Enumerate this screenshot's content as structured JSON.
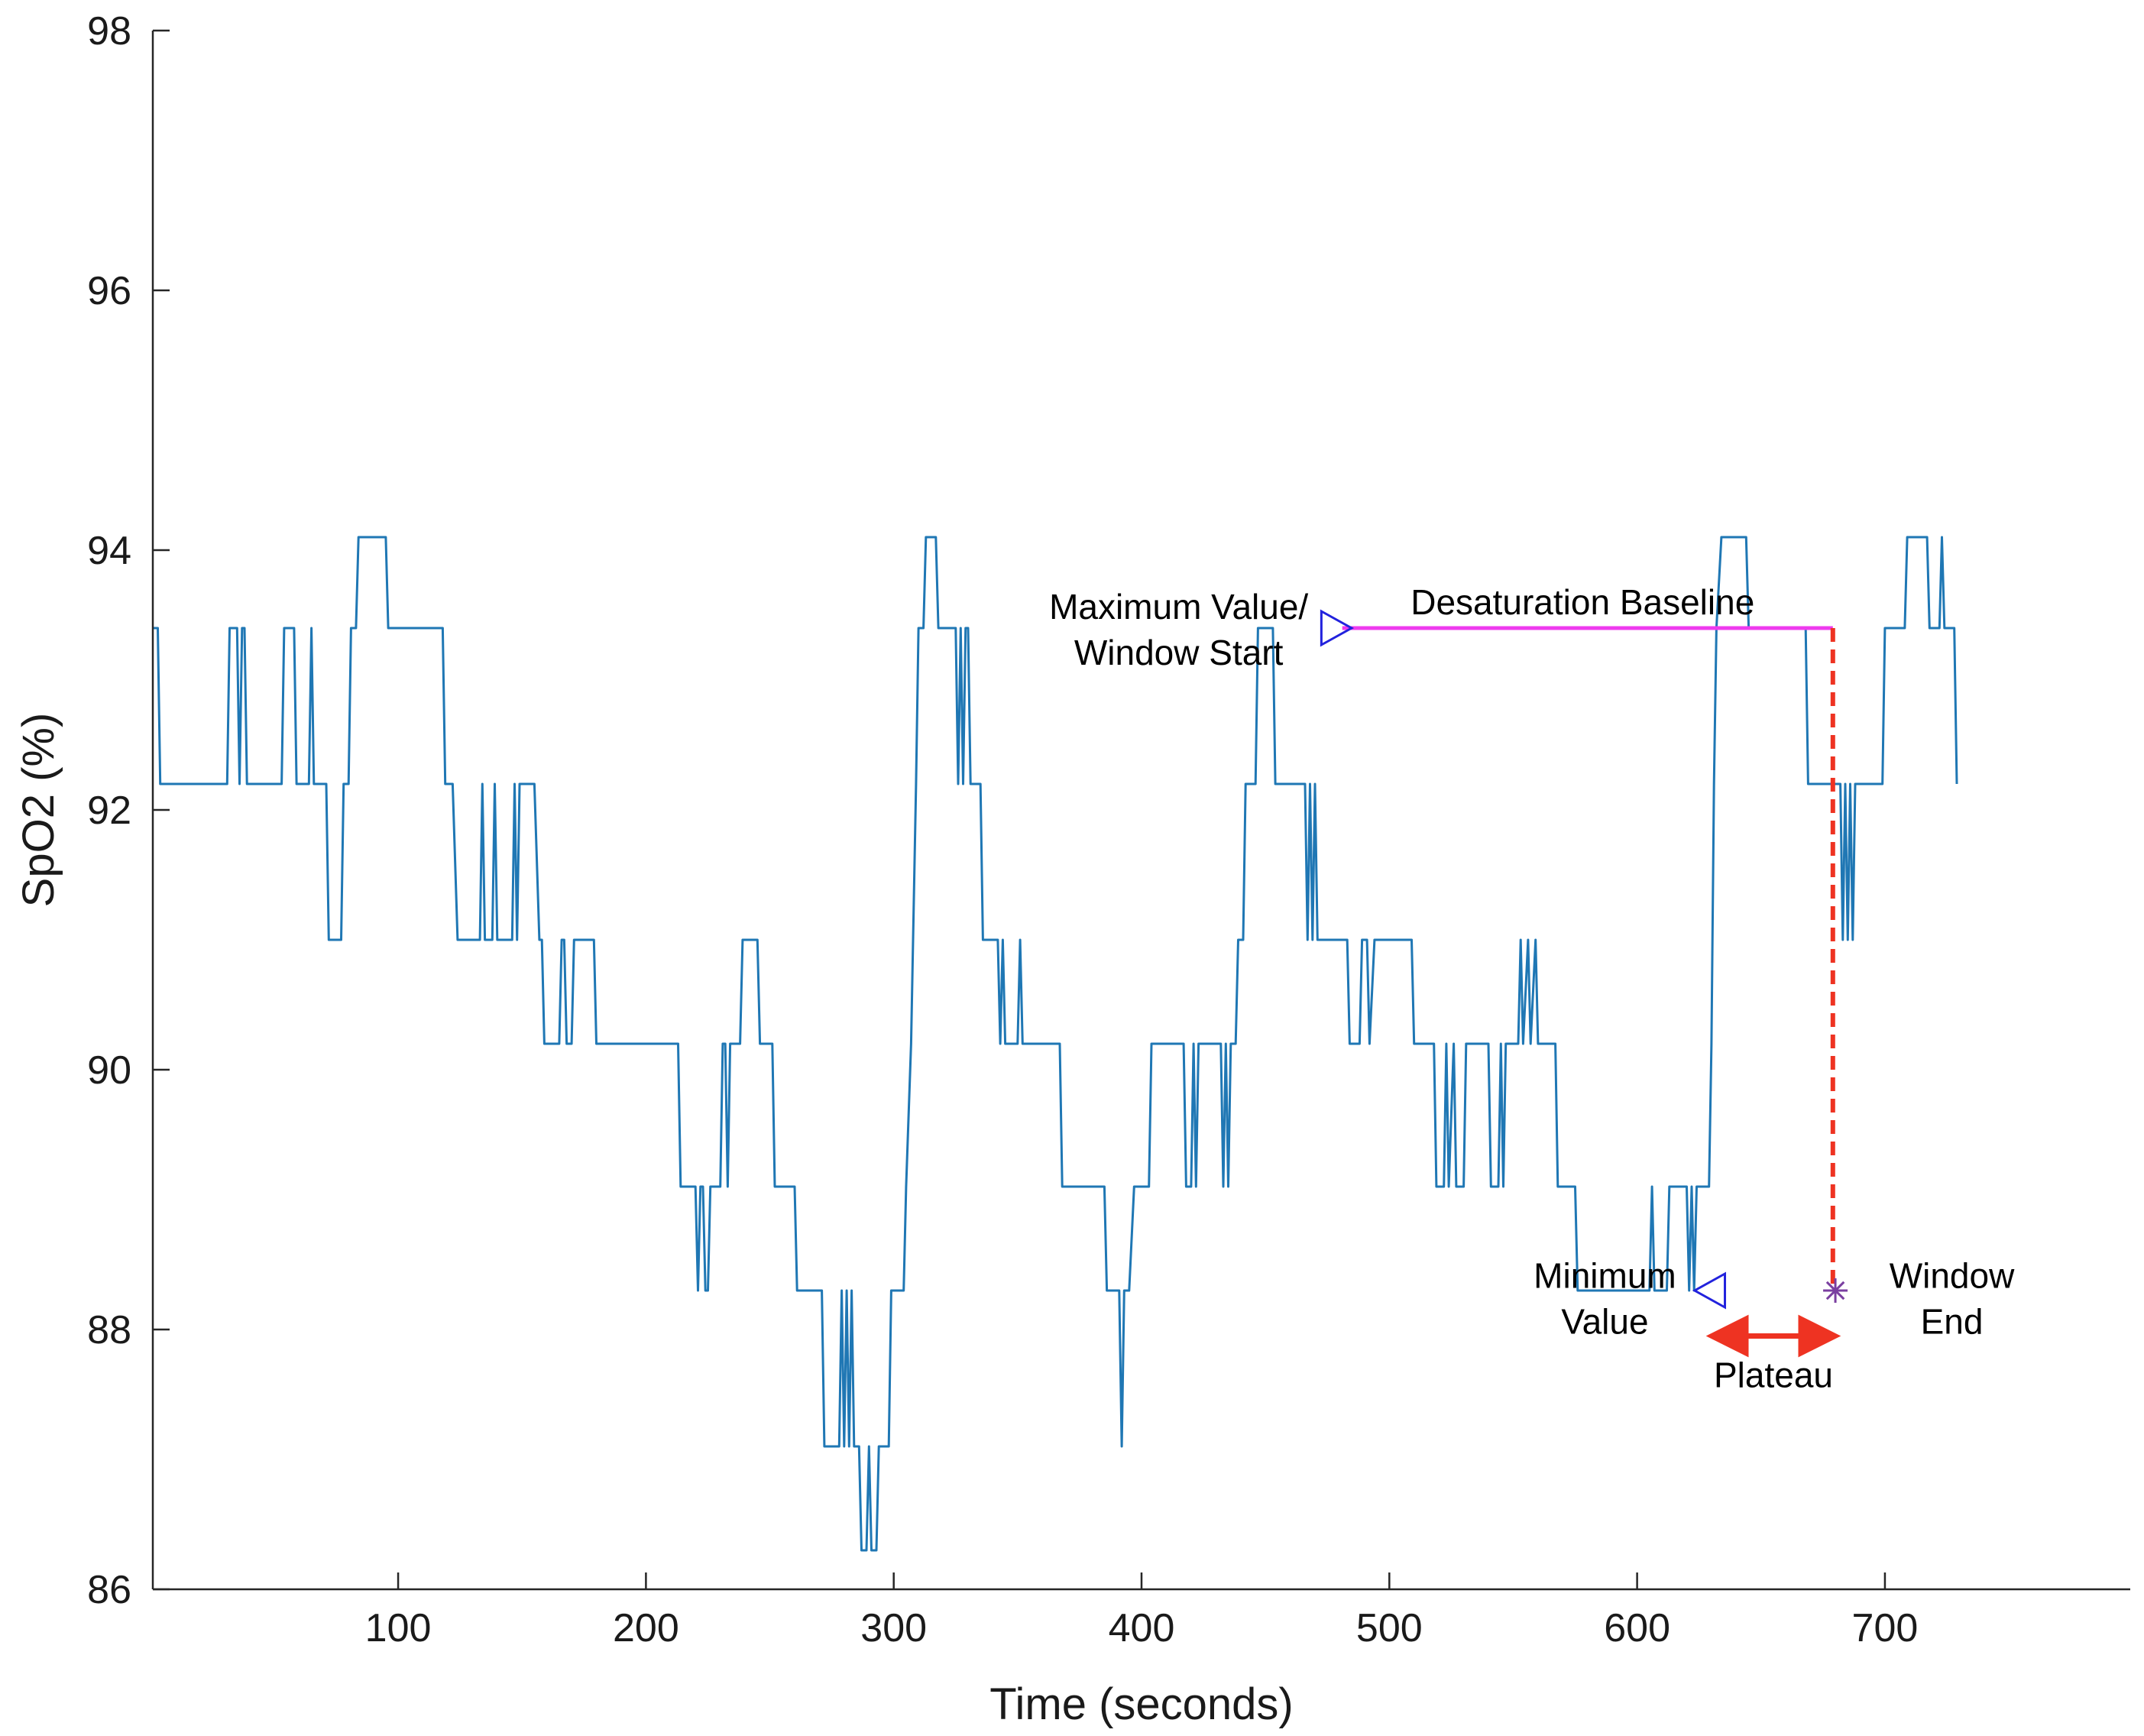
{
  "chart_data": {
    "type": "line",
    "xlabel": "Time (seconds)",
    "ylabel": "SpO2 (%)",
    "xlim": [
      1,
      799
    ],
    "ylim": [
      86,
      98
    ],
    "xticks": [
      100,
      200,
      300,
      400,
      500,
      600,
      700
    ],
    "yticks": [
      86,
      88,
      90,
      92,
      94,
      96,
      98
    ],
    "levels": [
      86.3,
      87.1,
      88.3,
      89.1,
      90.2,
      91.0,
      92.2,
      93.4,
      94.1
    ],
    "grid": false,
    "series": [
      {
        "name": "SpO2",
        "color": "#1f77b4",
        "points": [
          [
            1,
            93.4
          ],
          [
            3,
            93.4
          ],
          [
            4,
            92.2
          ],
          [
            31,
            92.2
          ],
          [
            32,
            93.4
          ],
          [
            35,
            93.4
          ],
          [
            36,
            92.2
          ],
          [
            37,
            93.4
          ],
          [
            38,
            93.4
          ],
          [
            39,
            92.2
          ],
          [
            53,
            92.2
          ],
          [
            54,
            93.4
          ],
          [
            58,
            93.4
          ],
          [
            59,
            92.2
          ],
          [
            64,
            92.2
          ],
          [
            65,
            93.4
          ],
          [
            66,
            92.2
          ],
          [
            71,
            92.2
          ],
          [
            72,
            91.0
          ],
          [
            77,
            91.0
          ],
          [
            78,
            92.2
          ],
          [
            80,
            92.2
          ],
          [
            81,
            93.4
          ],
          [
            83,
            93.4
          ],
          [
            84,
            94.1
          ],
          [
            95,
            94.1
          ],
          [
            96,
            93.4
          ],
          [
            118,
            93.4
          ],
          [
            119,
            92.2
          ],
          [
            122,
            92.2
          ],
          [
            124,
            91.0
          ],
          [
            133,
            91.0
          ],
          [
            134,
            92.2
          ],
          [
            135,
            91.0
          ],
          [
            138,
            91.0
          ],
          [
            139,
            92.2
          ],
          [
            140,
            91.0
          ],
          [
            146,
            91.0
          ],
          [
            147,
            92.2
          ],
          [
            148,
            91.0
          ],
          [
            149,
            92.2
          ],
          [
            155,
            92.2
          ],
          [
            157,
            91.0
          ],
          [
            158,
            91.0
          ],
          [
            159,
            90.2
          ],
          [
            165,
            90.2
          ],
          [
            166,
            91.0
          ],
          [
            167,
            91.0
          ],
          [
            168,
            90.2
          ],
          [
            170,
            90.2
          ],
          [
            171,
            91.0
          ],
          [
            179,
            91.0
          ],
          [
            180,
            90.2
          ],
          [
            213,
            90.2
          ],
          [
            214,
            89.1
          ],
          [
            220,
            89.1
          ],
          [
            221,
            88.3
          ],
          [
            222,
            89.1
          ],
          [
            223,
            89.1
          ],
          [
            224,
            88.3
          ],
          [
            225,
            88.3
          ],
          [
            226,
            89.1
          ],
          [
            230,
            89.1
          ],
          [
            231,
            90.2
          ],
          [
            232,
            90.2
          ],
          [
            233,
            89.1
          ],
          [
            234,
            90.2
          ],
          [
            238,
            90.2
          ],
          [
            239,
            91.0
          ],
          [
            245,
            91.0
          ],
          [
            246,
            90.2
          ],
          [
            251,
            90.2
          ],
          [
            252,
            89.1
          ],
          [
            260,
            89.1
          ],
          [
            261,
            88.3
          ],
          [
            271,
            88.3
          ],
          [
            272,
            87.1
          ],
          [
            278,
            87.1
          ],
          [
            279,
            88.3
          ],
          [
            280,
            87.1
          ],
          [
            281,
            88.3
          ],
          [
            282,
            87.1
          ],
          [
            283,
            88.3
          ],
          [
            284,
            87.1
          ],
          [
            286,
            87.1
          ],
          [
            287,
            86.3
          ],
          [
            289,
            86.3
          ],
          [
            290,
            87.1
          ],
          [
            291,
            86.3
          ],
          [
            293,
            86.3
          ],
          [
            294,
            87.1
          ],
          [
            298,
            87.1
          ],
          [
            299,
            88.3
          ],
          [
            304,
            88.3
          ],
          [
            305,
            89.1
          ],
          [
            307,
            90.2
          ],
          [
            309,
            92.2
          ],
          [
            310,
            93.4
          ],
          [
            312,
            93.4
          ],
          [
            313,
            94.1
          ],
          [
            317,
            94.1
          ],
          [
            318,
            93.4
          ],
          [
            325,
            93.4
          ],
          [
            326,
            92.2
          ],
          [
            327,
            93.4
          ],
          [
            328,
            92.2
          ],
          [
            329,
            93.4
          ],
          [
            330,
            93.4
          ],
          [
            331,
            92.2
          ],
          [
            335,
            92.2
          ],
          [
            336,
            91.0
          ],
          [
            342,
            91.0
          ],
          [
            343,
            90.2
          ],
          [
            344,
            91.0
          ],
          [
            345,
            90.2
          ],
          [
            350,
            90.2
          ],
          [
            351,
            91.0
          ],
          [
            352,
            90.2
          ],
          [
            367,
            90.2
          ],
          [
            368,
            89.1
          ],
          [
            385,
            89.1
          ],
          [
            386,
            88.3
          ],
          [
            391,
            88.3
          ],
          [
            392,
            87.1
          ],
          [
            393,
            88.3
          ],
          [
            395,
            88.3
          ],
          [
            397,
            89.1
          ],
          [
            403,
            89.1
          ],
          [
            404,
            90.2
          ],
          [
            417,
            90.2
          ],
          [
            418,
            89.1
          ],
          [
            420,
            89.1
          ],
          [
            421,
            90.2
          ],
          [
            422,
            89.1
          ],
          [
            423,
            90.2
          ],
          [
            432,
            90.2
          ],
          [
            433,
            89.1
          ],
          [
            434,
            90.2
          ],
          [
            435,
            89.1
          ],
          [
            436,
            90.2
          ],
          [
            438,
            90.2
          ],
          [
            439,
            91.0
          ],
          [
            441,
            91.0
          ],
          [
            442,
            92.2
          ],
          [
            446,
            92.2
          ],
          [
            447,
            93.4
          ],
          [
            453,
            93.4
          ],
          [
            454,
            92.2
          ],
          [
            466,
            92.2
          ],
          [
            467,
            91.0
          ],
          [
            468,
            92.2
          ],
          [
            469,
            91.0
          ],
          [
            470,
            92.2
          ],
          [
            471,
            91.0
          ],
          [
            483,
            91.0
          ],
          [
            484,
            90.2
          ],
          [
            488,
            90.2
          ],
          [
            489,
            91.0
          ],
          [
            491,
            91.0
          ],
          [
            492,
            90.2
          ],
          [
            494,
            91.0
          ],
          [
            509,
            91.0
          ],
          [
            510,
            90.2
          ],
          [
            518,
            90.2
          ],
          [
            519,
            89.1
          ],
          [
            522,
            89.1
          ],
          [
            523,
            90.2
          ],
          [
            524,
            89.1
          ],
          [
            526,
            90.2
          ],
          [
            527,
            89.1
          ],
          [
            530,
            89.1
          ],
          [
            531,
            90.2
          ],
          [
            540,
            90.2
          ],
          [
            541,
            89.1
          ],
          [
            544,
            89.1
          ],
          [
            545,
            90.2
          ],
          [
            546,
            89.1
          ],
          [
            547,
            90.2
          ],
          [
            552,
            90.2
          ],
          [
            553,
            91.0
          ],
          [
            554,
            90.2
          ],
          [
            556,
            91.0
          ],
          [
            557,
            90.2
          ],
          [
            559,
            91.0
          ],
          [
            560,
            90.2
          ],
          [
            567,
            90.2
          ],
          [
            568,
            89.1
          ],
          [
            575,
            89.1
          ],
          [
            576,
            88.3
          ],
          [
            605,
            88.3
          ],
          [
            606,
            89.1
          ],
          [
            607,
            88.3
          ],
          [
            612,
            88.3
          ],
          [
            613,
            89.1
          ],
          [
            620,
            89.1
          ],
          [
            621,
            88.3
          ],
          [
            622,
            89.1
          ],
          [
            623,
            88.3
          ],
          [
            624,
            89.1
          ],
          [
            629,
            89.1
          ],
          [
            630,
            90.2
          ],
          [
            631,
            92.2
          ],
          [
            632,
            93.4
          ],
          [
            634,
            94.1
          ],
          [
            644,
            94.1
          ],
          [
            645,
            93.4
          ],
          [
            668,
            93.4
          ],
          [
            669,
            92.2
          ],
          [
            682,
            92.2
          ],
          [
            683,
            91.0
          ],
          [
            684,
            92.2
          ],
          [
            685,
            91.0
          ],
          [
            686,
            92.2
          ],
          [
            687,
            91.0
          ],
          [
            688,
            92.2
          ],
          [
            699,
            92.2
          ],
          [
            700,
            93.4
          ],
          [
            708,
            93.4
          ],
          [
            709,
            94.1
          ],
          [
            717,
            94.1
          ],
          [
            718,
            93.4
          ],
          [
            722,
            93.4
          ],
          [
            723,
            94.1
          ],
          [
            724,
            93.4
          ],
          [
            728,
            93.4
          ],
          [
            729,
            92.2
          ]
        ]
      },
      {
        "name": "Desaturation Baseline",
        "color": "#ee3bee",
        "points": [
          [
            481,
            93.4
          ],
          [
            679,
            93.4
          ]
        ]
      },
      {
        "name": "Window End marker line",
        "color": "#ee3322",
        "style": "dashed",
        "points": [
          [
            679,
            93.4
          ],
          [
            679,
            88.3
          ]
        ]
      },
      {
        "name": "Plateau",
        "color": "#ee3322",
        "style": "double-arrow",
        "points": [
          [
            631,
            87.95
          ],
          [
            679,
            87.95
          ]
        ]
      }
    ],
    "markers": [
      {
        "name": "maximum-value-marker",
        "shape": "triangle-right",
        "x": 478,
        "y": 93.4,
        "color": "#2222dd"
      },
      {
        "name": "minimum-value-marker",
        "shape": "triangle-left",
        "x": 630,
        "y": 88.3,
        "color": "#2222dd"
      },
      {
        "name": "window-end-marker",
        "shape": "asterisk",
        "x": 680,
        "y": 88.3,
        "color": "#7a3fa0"
      }
    ],
    "annotations": [
      {
        "name": "annotation-maximum-value",
        "lines": [
          "Maximum Value/",
          "Window Start"
        ],
        "x": 415,
        "y": 93.4
      },
      {
        "name": "annotation-desaturation-baseline",
        "lines": [
          "Desaturation Baseline"
        ],
        "x": 578,
        "y": 93.6
      },
      {
        "name": "annotation-minimum-value",
        "lines": [
          "Minimum",
          "Value"
        ],
        "x": 587,
        "y": 88.25
      },
      {
        "name": "annotation-window-end",
        "lines": [
          "Window",
          "End"
        ],
        "x": 727,
        "y": 88.25
      },
      {
        "name": "annotation-plateau",
        "lines": [
          "Plateau"
        ],
        "x": 655,
        "y": 87.65
      }
    ]
  }
}
